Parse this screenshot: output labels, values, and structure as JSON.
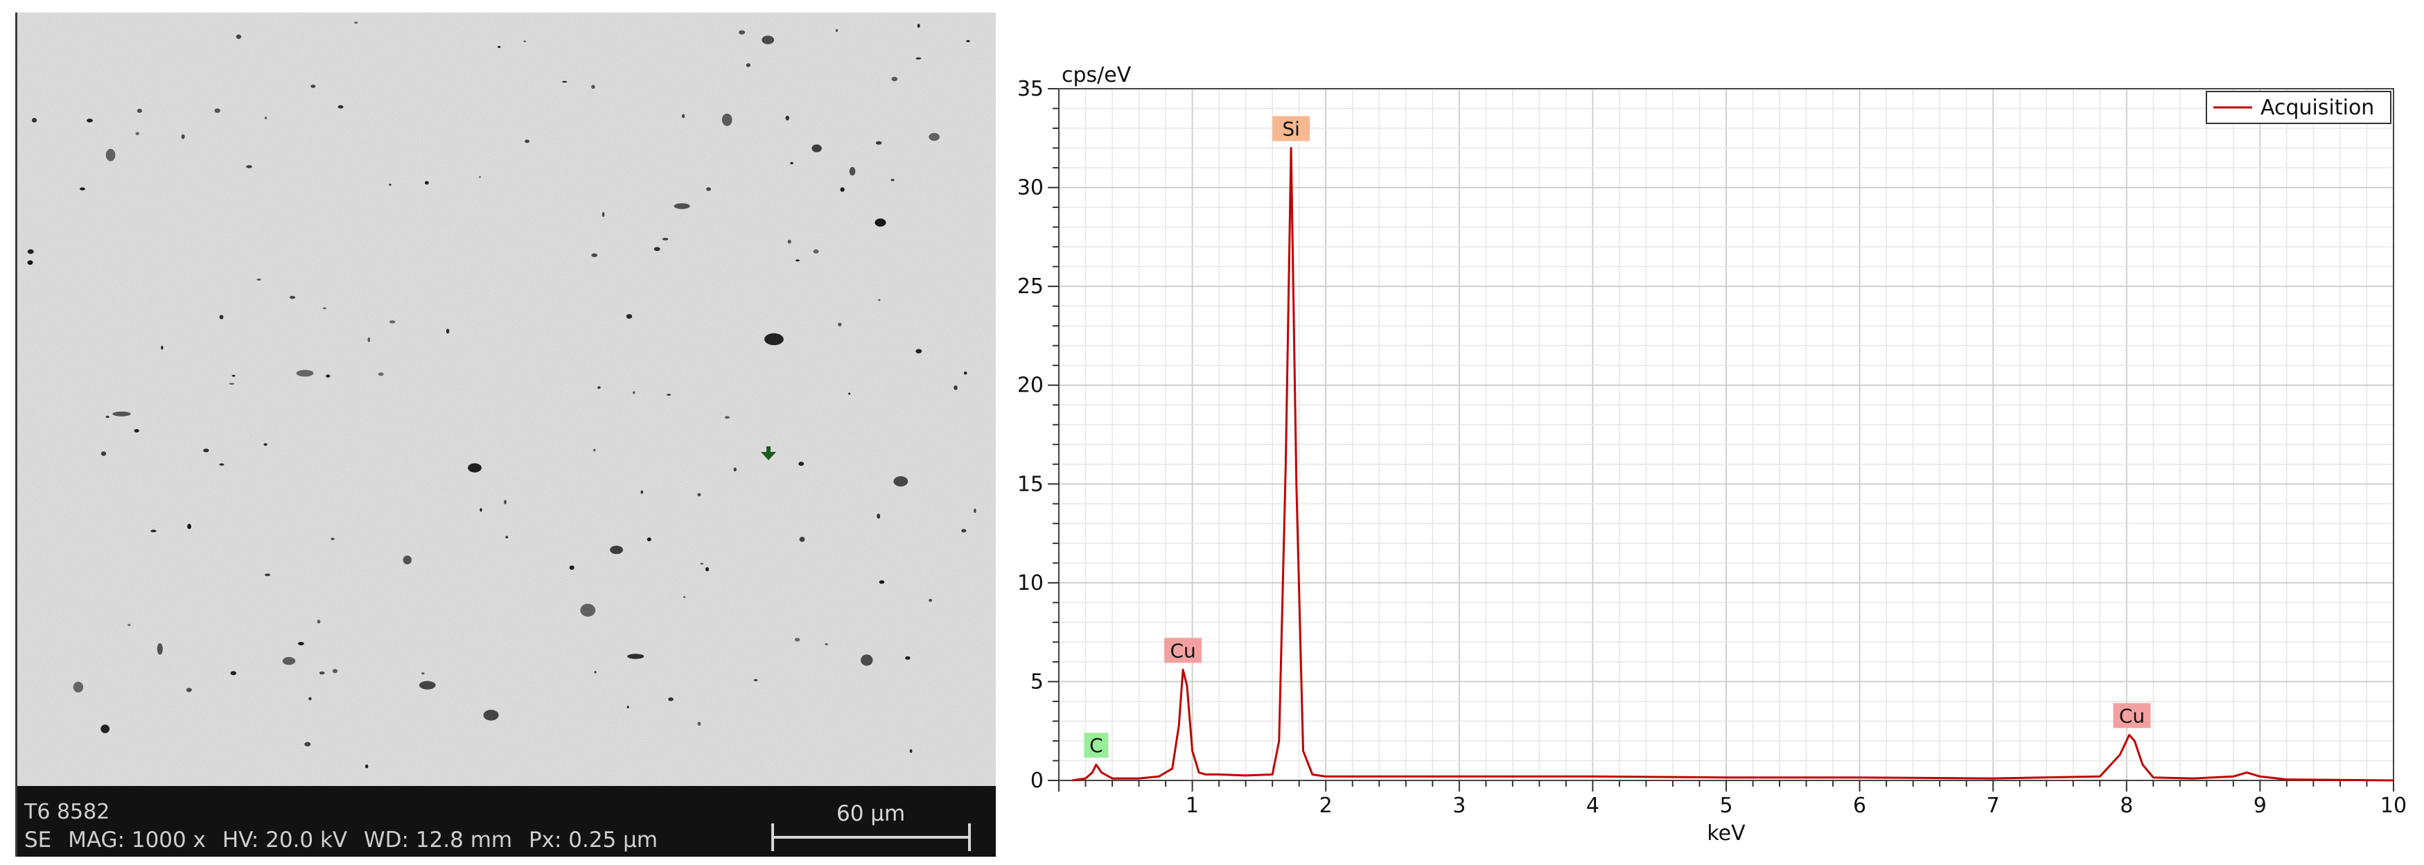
{
  "sem": {
    "sample_id": "T6 8582",
    "params": {
      "mode": "SE",
      "mag": "MAG: 1000 x",
      "hv": "HV: 20.0 kV",
      "wd": "WD: 12.8 mm",
      "px": "Px: 0.25 µm"
    },
    "scale_bar_label": "60 µm",
    "colors": {
      "background": "#d2d2d2",
      "databar": "#121212"
    }
  },
  "chart_data": {
    "type": "line",
    "title": "",
    "xlabel": "keV",
    "ylabel": "cps/eV",
    "xlim": [
      0,
      10
    ],
    "ylim": [
      0,
      35
    ],
    "x_ticks": [
      1,
      2,
      3,
      4,
      5,
      6,
      7,
      8,
      9,
      10
    ],
    "y_ticks": [
      0,
      5,
      10,
      15,
      20,
      25,
      30,
      35
    ],
    "grid": true,
    "legend_position": "top-right",
    "series": [
      {
        "name": "Acquisition",
        "color": "#c00000",
        "x": [
          0.1,
          0.2,
          0.25,
          0.28,
          0.32,
          0.4,
          0.6,
          0.75,
          0.85,
          0.9,
          0.93,
          0.96,
          1.0,
          1.05,
          1.1,
          1.2,
          1.4,
          1.6,
          1.65,
          1.7,
          1.74,
          1.78,
          1.83,
          1.9,
          2.0,
          2.5,
          3.0,
          4.0,
          5.0,
          6.0,
          7.0,
          7.8,
          7.95,
          8.02,
          8.06,
          8.12,
          8.2,
          8.5,
          8.8,
          8.9,
          9.0,
          9.2,
          10.0
        ],
        "y": [
          0.0,
          0.1,
          0.4,
          0.8,
          0.4,
          0.1,
          0.1,
          0.2,
          0.6,
          2.8,
          5.6,
          4.8,
          1.5,
          0.4,
          0.3,
          0.3,
          0.25,
          0.3,
          2.0,
          16.0,
          32.0,
          15.0,
          1.5,
          0.3,
          0.2,
          0.2,
          0.2,
          0.2,
          0.15,
          0.15,
          0.1,
          0.2,
          1.3,
          2.3,
          2.0,
          0.8,
          0.15,
          0.1,
          0.2,
          0.4,
          0.2,
          0.05,
          0.0
        ]
      }
    ],
    "annotations": [
      {
        "label": "C",
        "x": 0.28,
        "y": 0.8,
        "color": "#99ee99"
      },
      {
        "label": "Cu",
        "x": 0.93,
        "y": 5.6,
        "color": "#f4a0a0"
      },
      {
        "label": "Si",
        "x": 1.74,
        "y": 32.0,
        "color": "#f6b890"
      },
      {
        "label": "Cu",
        "x": 8.04,
        "y": 2.3,
        "color": "#f4a0a0"
      }
    ]
  }
}
